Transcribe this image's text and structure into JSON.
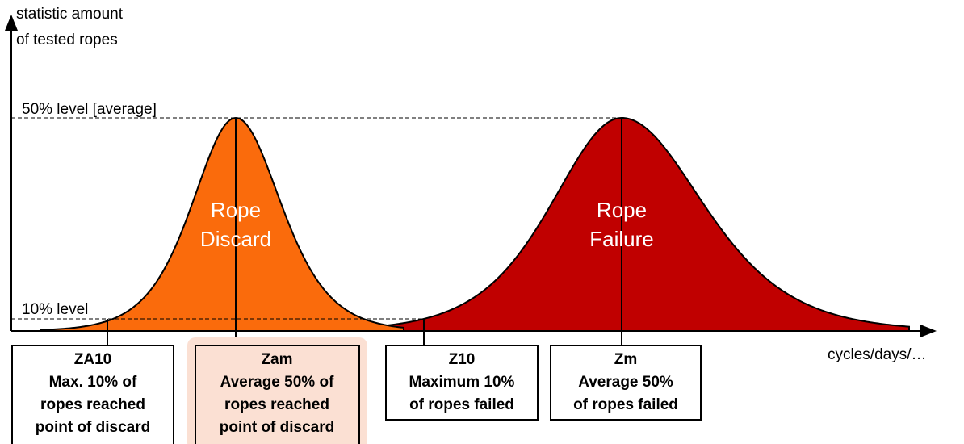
{
  "axes": {
    "y_label": [
      "statistic amount",
      "of tested ropes"
    ],
    "x_label": "cycles/days/…"
  },
  "levels": {
    "average": "50% level [average]",
    "ten": "10% level"
  },
  "curves": {
    "discard": [
      "Rope",
      "Discard"
    ],
    "failure": [
      "Rope",
      "Failure"
    ]
  },
  "boxes": [
    {
      "lines": [
        "ZA10",
        "Max. 10% of",
        "ropes reached",
        "point of discard"
      ]
    },
    {
      "lines": [
        "Zam",
        "Average 50% of",
        "ropes reached",
        "point of discard"
      ]
    },
    {
      "lines": [
        "Z10",
        "Maximum 10%",
        "of ropes failed"
      ]
    },
    {
      "lines": [
        "Zm",
        "Average 50%",
        "of ropes failed"
      ]
    }
  ]
}
